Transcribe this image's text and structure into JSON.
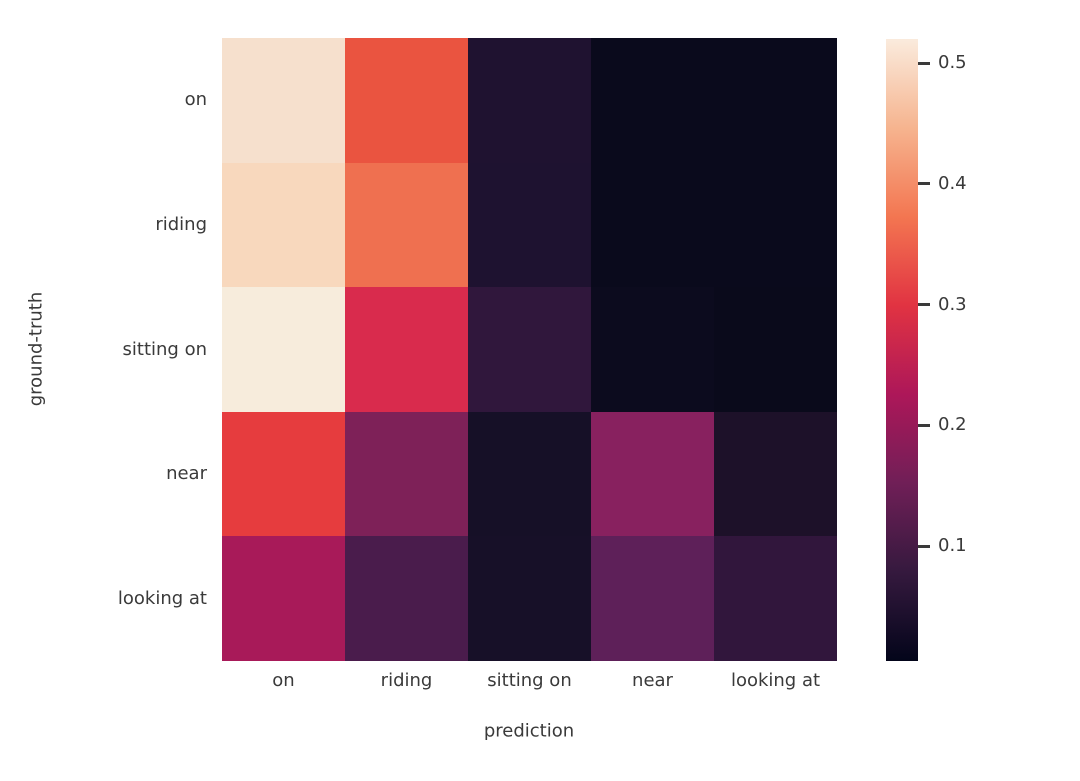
{
  "figure": {
    "background": "#ffffff",
    "text_color": "#3a3a3a"
  },
  "chart_data": {
    "type": "heatmap",
    "title": "",
    "xlabel": "prediction",
    "ylabel": "ground-truth",
    "x_categories": [
      "on",
      "riding",
      "sitting on",
      "near",
      "looking at"
    ],
    "y_categories": [
      "on",
      "riding",
      "sitting on",
      "near",
      "looking at"
    ],
    "values": [
      [
        0.5,
        0.34,
        0.05,
        0.02,
        0.02
      ],
      [
        0.47,
        0.36,
        0.05,
        0.02,
        0.02
      ],
      [
        0.52,
        0.29,
        0.08,
        0.02,
        0.015
      ],
      [
        0.31,
        0.17,
        0.04,
        0.19,
        0.05
      ],
      [
        0.22,
        0.11,
        0.04,
        0.14,
        0.08
      ]
    ],
    "cell_colors": [
      [
        "#f6e0cd",
        "#ea5440",
        "#1f1230",
        "#0a0a1c",
        "#0a0a1c"
      ],
      [
        "#f8d8bd",
        "#ef7050",
        "#1e1230",
        "#0a0a1c",
        "#0a0a1c"
      ],
      [
        "#f7ecdc",
        "#d92b4d",
        "#30173c",
        "#0c0b1e",
        "#0a0a1b"
      ],
      [
        "#e63c3e",
        "#7e2158",
        "#161027",
        "#88215f",
        "#1d1129"
      ],
      [
        "#a81a59",
        "#4a1c4c",
        "#171028",
        "#5e2059",
        "#31163c"
      ]
    ],
    "colormap": "rocket",
    "grid": false,
    "legend_position": "colorbar-right",
    "colorbar": {
      "vmin": 0.005,
      "vmax": 0.52,
      "tick_labels": [
        "0.5",
        "0.4",
        "0.3",
        "0.2",
        "0.1"
      ],
      "tick_values": [
        0.5,
        0.4,
        0.3,
        0.2,
        0.1
      ],
      "gradient_stops_top_to_bottom": [
        "#faebdd",
        "#f6b48f",
        "#f37651",
        "#e13342",
        "#ad1759",
        "#701f57",
        "#35193e",
        "#03051a"
      ]
    }
  }
}
